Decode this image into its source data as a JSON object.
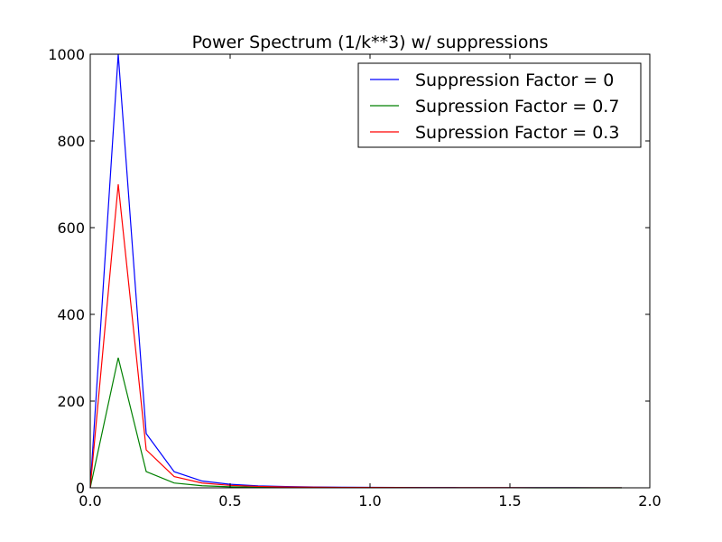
{
  "chart_data": {
    "type": "line",
    "title": "Power Spectrum (1/k**3) w/ suppressions",
    "xlabel": "",
    "ylabel": "",
    "xlim": [
      0.0,
      2.0
    ],
    "ylim": [
      0,
      1000
    ],
    "x_ticks": [
      "0.0",
      "0.5",
      "1.0",
      "1.5",
      "2.0"
    ],
    "y_ticks": [
      "0",
      "200",
      "400",
      "600",
      "800",
      "1000"
    ],
    "grid": false,
    "legend_position": "top-right",
    "x": [
      0.0,
      0.1,
      0.2,
      0.3,
      0.4,
      0.5,
      0.6,
      0.7,
      0.8,
      0.9,
      1.0,
      1.1,
      1.2,
      1.3,
      1.4,
      1.5,
      1.6,
      1.7,
      1.8,
      1.9
    ],
    "series": [
      {
        "name": "Suppression Factor = 0",
        "color": "#0000ff",
        "values": [
          0,
          1000,
          125,
          37,
          15.6,
          8,
          4.6,
          2.9,
          2.0,
          1.4,
          1.0,
          0.75,
          0.58,
          0.46,
          0.36,
          0.3,
          0.24,
          0.2,
          0.17,
          0.15
        ]
      },
      {
        "name": "Supression Factor = 0.7",
        "color": "#008000",
        "values": [
          0,
          300,
          37.5,
          11.1,
          4.7,
          2.4,
          1.4,
          0.87,
          0.59,
          0.41,
          0.3,
          0.23,
          0.17,
          0.14,
          0.11,
          0.09,
          0.07,
          0.06,
          0.05,
          0.04
        ]
      },
      {
        "name": "Supression Factor = 0.3",
        "color": "#ff0000",
        "values": [
          0,
          700,
          87.5,
          25.9,
          10.9,
          5.6,
          3.2,
          2.0,
          1.4,
          0.96,
          0.7,
          0.53,
          0.41,
          0.32,
          0.26,
          0.21,
          0.17,
          0.14,
          0.12,
          0.1
        ]
      }
    ]
  }
}
